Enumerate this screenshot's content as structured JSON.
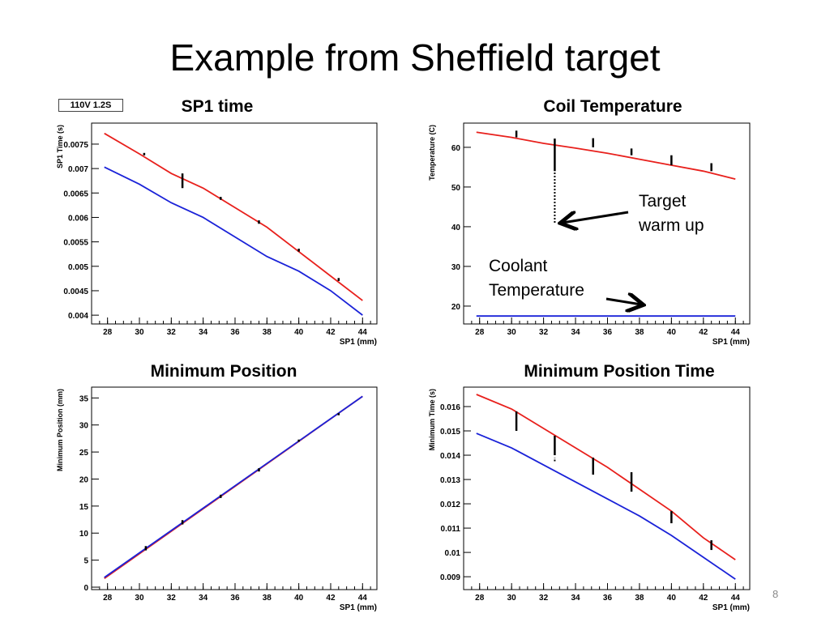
{
  "slide": {
    "title": "Example from Sheffield target",
    "page_number": "8",
    "legend_label": "110V 1.2S"
  },
  "annotations": {
    "target_warm_up": [
      "Target",
      "warm up"
    ],
    "coolant": [
      "Coolant",
      "Temperature"
    ]
  },
  "colors": {
    "red": "#e8201c",
    "blue": "#1a22d8",
    "bar": "#000000"
  },
  "chart_data": [
    {
      "type": "line",
      "title": "SP1 time",
      "xlabel": "SP1 (mm)",
      "ylabel": "SP1 Time (s)",
      "xlim": [
        27,
        44.9
      ],
      "ylim": [
        0.00382,
        0.00793
      ],
      "xticks": [
        "28",
        "30",
        "32",
        "34",
        "36",
        "38",
        "40",
        "42",
        "44"
      ],
      "yticks": [
        "0.004",
        "0.0045",
        "0.005",
        "0.0055",
        "0.006",
        "0.0065",
        "0.007",
        "0.0075"
      ],
      "series": [
        {
          "name": "red",
          "x": [
            27.8,
            30,
            32,
            34,
            36,
            38,
            40,
            42,
            44
          ],
          "y": [
            0.00772,
            0.0073,
            0.0069,
            0.0066,
            0.0062,
            0.0058,
            0.0053,
            0.0048,
            0.0043
          ]
        },
        {
          "name": "blue",
          "x": [
            27.8,
            30,
            32,
            34,
            36,
            38,
            40,
            42,
            44
          ],
          "y": [
            0.00703,
            0.00668,
            0.0063,
            0.006,
            0.0056,
            0.0052,
            0.0049,
            0.0045,
            0.004
          ]
        }
      ],
      "error_bars": [
        [
          30.3,
          0.00727,
          0.00732
        ],
        [
          32.7,
          0.0066,
          0.0069
        ],
        [
          35.1,
          0.00636,
          0.00642
        ],
        [
          37.5,
          0.00587,
          0.00594
        ],
        [
          40,
          0.0053,
          0.00536
        ],
        [
          42.5,
          0.0047,
          0.00476
        ]
      ]
    },
    {
      "type": "line",
      "title": "Coil Temperature",
      "xlabel": "SP1 (mm)",
      "ylabel": "Temperature (C)",
      "xlim": [
        27,
        44.9
      ],
      "ylim": [
        15.5,
        66.1
      ],
      "xticks": [
        "28",
        "30",
        "32",
        "34",
        "36",
        "38",
        "40",
        "42",
        "44"
      ],
      "yticks": [
        "20",
        "30",
        "40",
        "50",
        "60"
      ],
      "series": [
        {
          "name": "red",
          "x": [
            27.8,
            30,
            32,
            34,
            36,
            38,
            40,
            42,
            44
          ],
          "y": [
            63.8,
            62.5,
            61,
            59.8,
            58.5,
            57,
            55.5,
            54,
            52
          ]
        },
        {
          "name": "blue",
          "x": [
            27.8,
            44
          ],
          "y": [
            17.5,
            17.5
          ]
        }
      ],
      "error_bars": [
        [
          30.3,
          62.5,
          64.2
        ],
        [
          32.7,
          54,
          62.2
        ],
        [
          35.1,
          60,
          62.3
        ],
        [
          37.5,
          58,
          59.7
        ],
        [
          40,
          55.5,
          58
        ],
        [
          42.5,
          54,
          56
        ]
      ],
      "dotted": [
        [
          32.7,
          41,
          54
        ]
      ]
    },
    {
      "type": "line",
      "title": "Minimum Position",
      "xlabel": "SP1 (mm)",
      "ylabel": "Minimum Position (mm)",
      "xlim": [
        27,
        44.9
      ],
      "ylim": [
        -0.45,
        37
      ],
      "xticks": [
        "28",
        "30",
        "32",
        "34",
        "36",
        "38",
        "40",
        "42",
        "44"
      ],
      "yticks": [
        "0",
        "5",
        "10",
        "15",
        "20",
        "25",
        "30",
        "35"
      ],
      "series": [
        {
          "name": "red",
          "x": [
            27.8,
            44
          ],
          "y": [
            1.6,
            35.3
          ]
        },
        {
          "name": "blue",
          "x": [
            27.8,
            44
          ],
          "y": [
            1.8,
            35.3
          ]
        }
      ],
      "error_bars": [
        [
          30.4,
          6.8,
          7.6
        ],
        [
          32.7,
          11.6,
          12.4
        ],
        [
          35.1,
          16.5,
          17.1
        ],
        [
          37.5,
          21.4,
          22
        ],
        [
          40,
          26.9,
          27.3
        ],
        [
          42.5,
          31.8,
          32.2
        ]
      ]
    },
    {
      "type": "line",
      "title": "Minimum Position Time",
      "xlabel": "SP1 (mm)",
      "ylabel": "Minimum Time (s)",
      "xlim": [
        27,
        44.9
      ],
      "ylim": [
        0.00847,
        0.0168
      ],
      "xticks": [
        "28",
        "30",
        "32",
        "34",
        "36",
        "38",
        "40",
        "42",
        "44"
      ],
      "yticks": [
        "0.009",
        "0.01",
        "0.011",
        "0.012",
        "0.013",
        "0.014",
        "0.015",
        "0.016"
      ],
      "series": [
        {
          "name": "red",
          "x": [
            27.8,
            30,
            32,
            34,
            36,
            38,
            40,
            42,
            44
          ],
          "y": [
            0.0165,
            0.0159,
            0.0151,
            0.0143,
            0.0135,
            0.0126,
            0.0117,
            0.0106,
            0.0097
          ]
        },
        {
          "name": "blue",
          "x": [
            27.8,
            30,
            32,
            34,
            36,
            38,
            40,
            42,
            44
          ],
          "y": [
            0.0149,
            0.0143,
            0.0136,
            0.0129,
            0.0122,
            0.0115,
            0.0107,
            0.0098,
            0.0089
          ]
        }
      ],
      "error_bars": [
        [
          30.3,
          0.015,
          0.0158
        ],
        [
          32.7,
          0.014,
          0.0148
        ],
        [
          35.1,
          0.0132,
          0.0139
        ],
        [
          37.5,
          0.0125,
          0.0133
        ],
        [
          40,
          0.0112,
          0.0117
        ],
        [
          42.5,
          0.0101,
          0.0105
        ]
      ],
      "dotted": [
        [
          32.7,
          0.01375,
          0.0139
        ]
      ]
    }
  ]
}
